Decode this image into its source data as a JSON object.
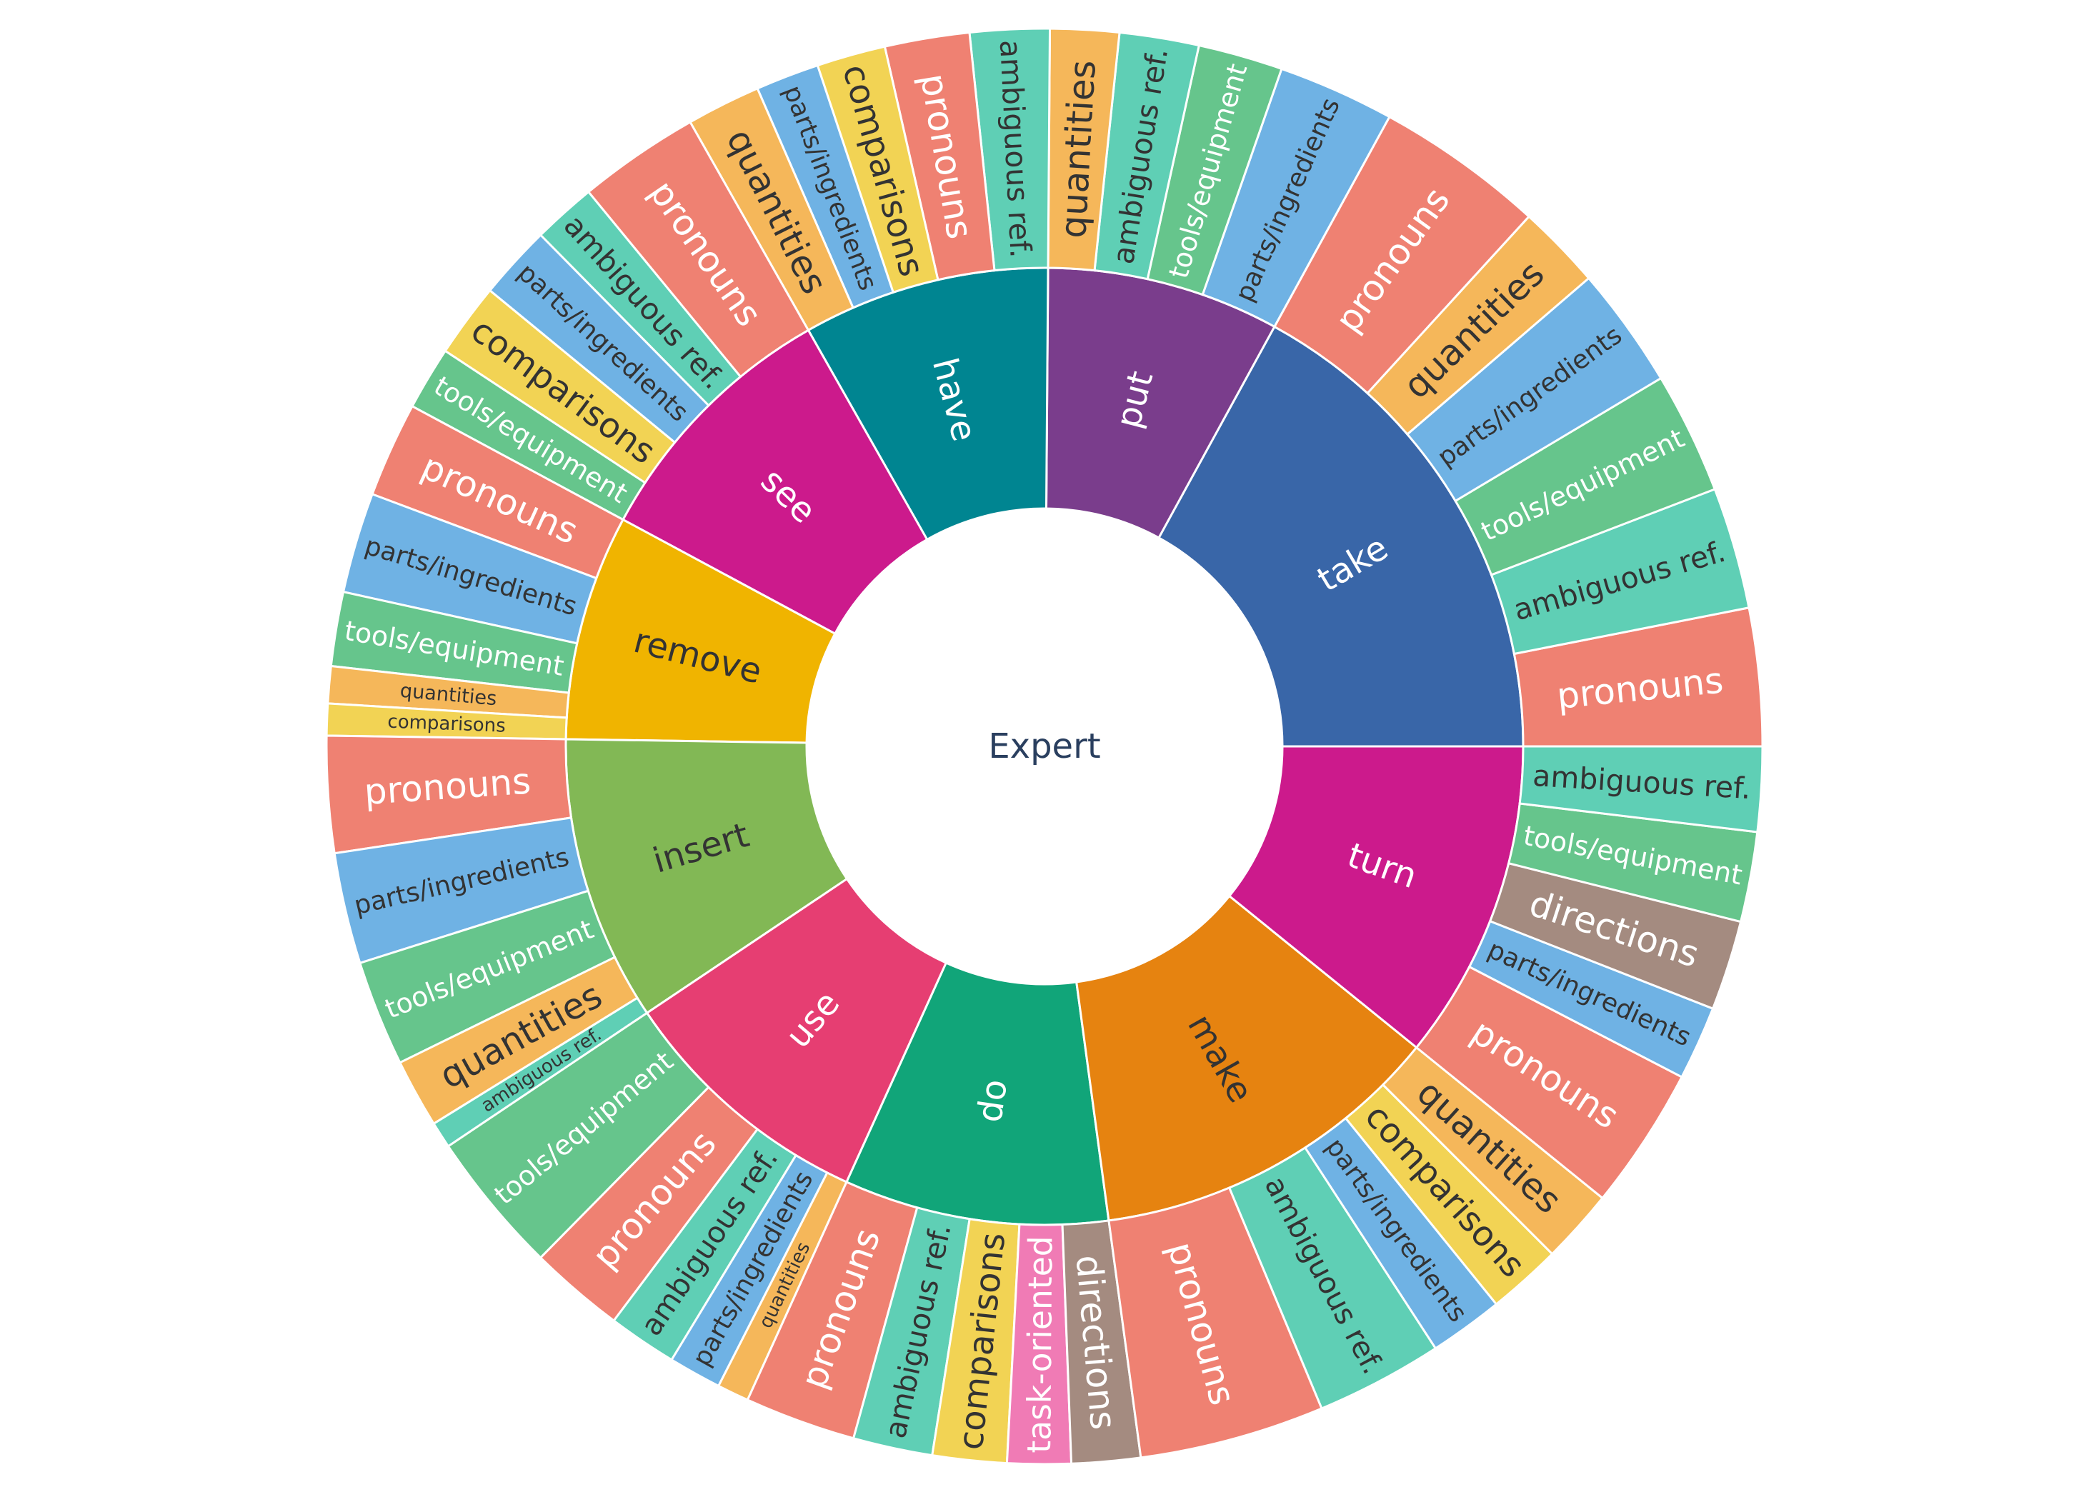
{
  "chart_data": {
    "type": "sunburst",
    "root": "Expert",
    "children": [
      {
        "name": "take",
        "color": "#3966A8",
        "text_color": "#ffffff",
        "children": [
          {
            "name": "pronouns",
            "value": 2.6
          },
          {
            "name": "ambiguous ref.",
            "value": 2.3
          },
          {
            "name": "tools/equipment",
            "value": 2.3
          },
          {
            "name": "parts/ingredients",
            "value": 2.3
          },
          {
            "name": "quantities",
            "value": 1.6
          },
          {
            "name": "pronouns",
            "value": 3.2
          }
        ]
      },
      {
        "name": "put",
        "color": "#7A3D8C",
        "text_color": "#ffffff",
        "children": [
          {
            "name": "parts/ingredients",
            "value": 2.2
          },
          {
            "name": "tools/equipment",
            "value": 1.6
          },
          {
            "name": "ambiguous ref.",
            "value": 1.5
          },
          {
            "name": "quantities",
            "value": 1.3
          }
        ]
      },
      {
        "name": "have",
        "color": "#008591",
        "text_color": "#ffffff",
        "children": [
          {
            "name": "ambiguous ref.",
            "value": 1.5
          },
          {
            "name": "pronouns",
            "value": 1.6
          },
          {
            "name": "comparisons",
            "value": 1.3
          },
          {
            "name": "parts/ingredients",
            "value": 1.2
          },
          {
            "name": "quantities",
            "value": 1.4
          }
        ]
      },
      {
        "name": "see",
        "color": "#CC1A8C",
        "text_color": "#ffffff",
        "children": [
          {
            "name": "pronouns",
            "value": 2.3
          },
          {
            "name": "ambiguous ref.",
            "value": 1.2
          },
          {
            "name": "parts/ingredients",
            "value": 1.4
          },
          {
            "name": "comparisons",
            "value": 1.4
          },
          {
            "name": "tools/equipment",
            "value": 1.2
          }
        ]
      },
      {
        "name": "remove",
        "color": "#F0B400",
        "text_color": "#333333",
        "children": [
          {
            "name": "pronouns",
            "value": 1.8
          },
          {
            "name": "parts/ingredients",
            "value": 1.9
          },
          {
            "name": "tools/equipment",
            "value": 1.4
          },
          {
            "name": "quantities",
            "value": 0.7
          },
          {
            "name": "comparisons",
            "value": 0.6
          }
        ]
      },
      {
        "name": "insert",
        "color": "#82B855",
        "text_color": "#333333",
        "children": [
          {
            "name": "pronouns",
            "value": 2.2
          },
          {
            "name": "parts/ingredients",
            "value": 2.1
          },
          {
            "name": "tools/equipment",
            "value": 2.0
          },
          {
            "name": "quantities",
            "value": 1.3
          },
          {
            "name": "ambiguous ref.",
            "value": 0.5
          }
        ]
      },
      {
        "name": "use",
        "color": "#E63E72",
        "text_color": "#ffffff",
        "children": [
          {
            "name": "tools/equipment",
            "value": 2.7
          },
          {
            "name": "pronouns",
            "value": 1.8
          },
          {
            "name": "ambiguous ref.",
            "value": 1.3
          },
          {
            "name": "parts/ingredients",
            "value": 1.0
          },
          {
            "name": "quantities",
            "value": 0.6
          }
        ]
      },
      {
        "name": "do",
        "color": "#11A579",
        "text_color": "#ffffff",
        "children": [
          {
            "name": "pronouns",
            "value": 2.1
          },
          {
            "name": "ambiguous ref.",
            "value": 1.5
          },
          {
            "name": "comparisons",
            "value": 1.4
          },
          {
            "name": "task-oriented",
            "value": 1.2
          },
          {
            "name": "directions",
            "value": 1.3
          }
        ]
      },
      {
        "name": "make",
        "color": "#E68310",
        "text_color": "#333333",
        "children": [
          {
            "name": "pronouns",
            "value": 3.5
          },
          {
            "name": "ambiguous ref.",
            "value": 2.4
          },
          {
            "name": "parts/ingredients",
            "value": 1.4
          },
          {
            "name": "comparisons",
            "value": 1.4
          },
          {
            "name": "quantities",
            "value": 1.4
          }
        ]
      },
      {
        "name": "turn",
        "color": "#CC1A8C",
        "text_color": "#ffffff",
        "children": [
          {
            "name": "pronouns",
            "value": 2.7
          },
          {
            "name": "parts/ingredients",
            "value": 1.4
          },
          {
            "name": "directions",
            "value": 1.7
          },
          {
            "name": "tools/equipment",
            "value": 1.7
          },
          {
            "name": "ambiguous ref.",
            "value": 1.6
          }
        ]
      }
    ]
  },
  "category_colors": {
    "pronouns": "#EF8172",
    "ambiguous ref.": "#5FCFB5",
    "tools/equipment": "#66C58C",
    "parts/ingredients": "#6FB2E4",
    "quantities": "#F5B75A",
    "comparisons": "#F2D354",
    "directions": "#A48B80",
    "task-oriented": "#F07BB5"
  },
  "label_colors": {
    "pronouns": "#ffffff",
    "ambiguous ref.": "#333333",
    "tools/equipment": "#ffffff",
    "parts/ingredients": "#333333",
    "quantities": "#333333",
    "comparisons": "#333333",
    "directions": "#ffffff",
    "task-oriented": "#ffffff"
  },
  "root_text_color": "#2A3F5F"
}
